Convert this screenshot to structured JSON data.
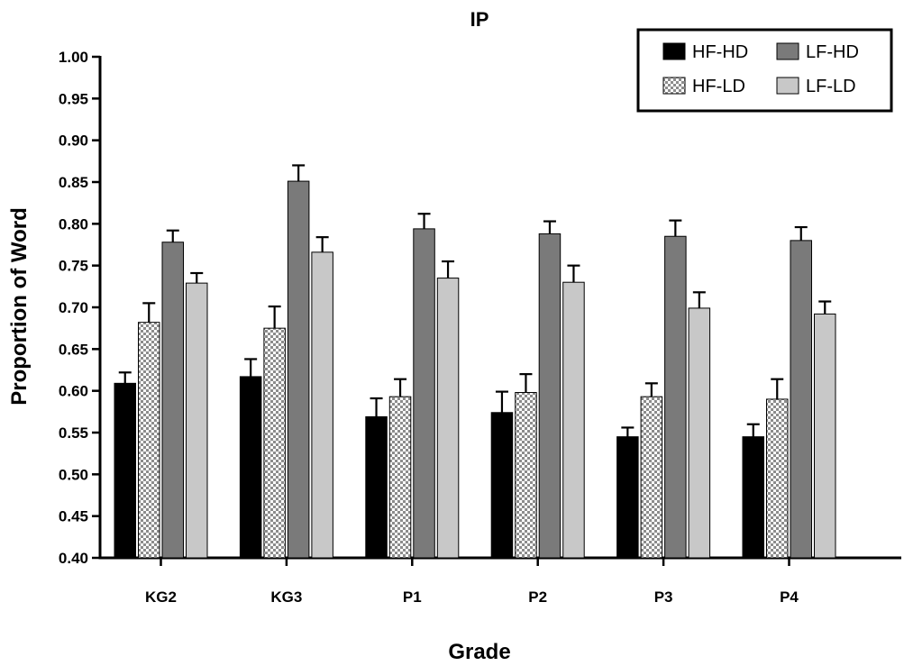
{
  "chart_data": {
    "type": "bar",
    "title": "IP",
    "xlabel": "Grade",
    "ylabel": "Proportion of Word",
    "ylim": [
      0.4,
      1.0
    ],
    "ytick_step": 0.05,
    "yticks": [
      "0.40",
      "0.45",
      "0.50",
      "0.55",
      "0.60",
      "0.65",
      "0.70",
      "0.75",
      "0.80",
      "0.85",
      "0.90",
      "0.95",
      "1.00"
    ],
    "categories": [
      "KG2",
      "KG3",
      "P1",
      "P2",
      "P3",
      "P4"
    ],
    "legend_position": "top-right",
    "series": [
      {
        "name": "HF-HD",
        "color": "#000000",
        "pattern": "solid",
        "values": [
          0.609,
          0.617,
          0.569,
          0.574,
          0.545,
          0.545
        ],
        "errors": [
          0.013,
          0.021,
          0.022,
          0.025,
          0.011,
          0.015
        ]
      },
      {
        "name": "HF-LD",
        "color": "#9a9a9a",
        "pattern": "checker",
        "values": [
          0.682,
          0.675,
          0.593,
          0.598,
          0.593,
          0.59
        ],
        "errors": [
          0.023,
          0.026,
          0.021,
          0.022,
          0.016,
          0.024
        ]
      },
      {
        "name": "LF-HD",
        "color": "#7a7a7a",
        "pattern": "solid",
        "values": [
          0.778,
          0.851,
          0.794,
          0.788,
          0.785,
          0.78
        ],
        "errors": [
          0.014,
          0.019,
          0.018,
          0.015,
          0.019,
          0.016
        ]
      },
      {
        "name": "LF-LD",
        "color": "#c8c8c8",
        "pattern": "solid",
        "values": [
          0.729,
          0.766,
          0.735,
          0.73,
          0.699,
          0.692
        ],
        "errors": [
          0.012,
          0.018,
          0.02,
          0.02,
          0.019,
          0.015
        ]
      }
    ]
  }
}
